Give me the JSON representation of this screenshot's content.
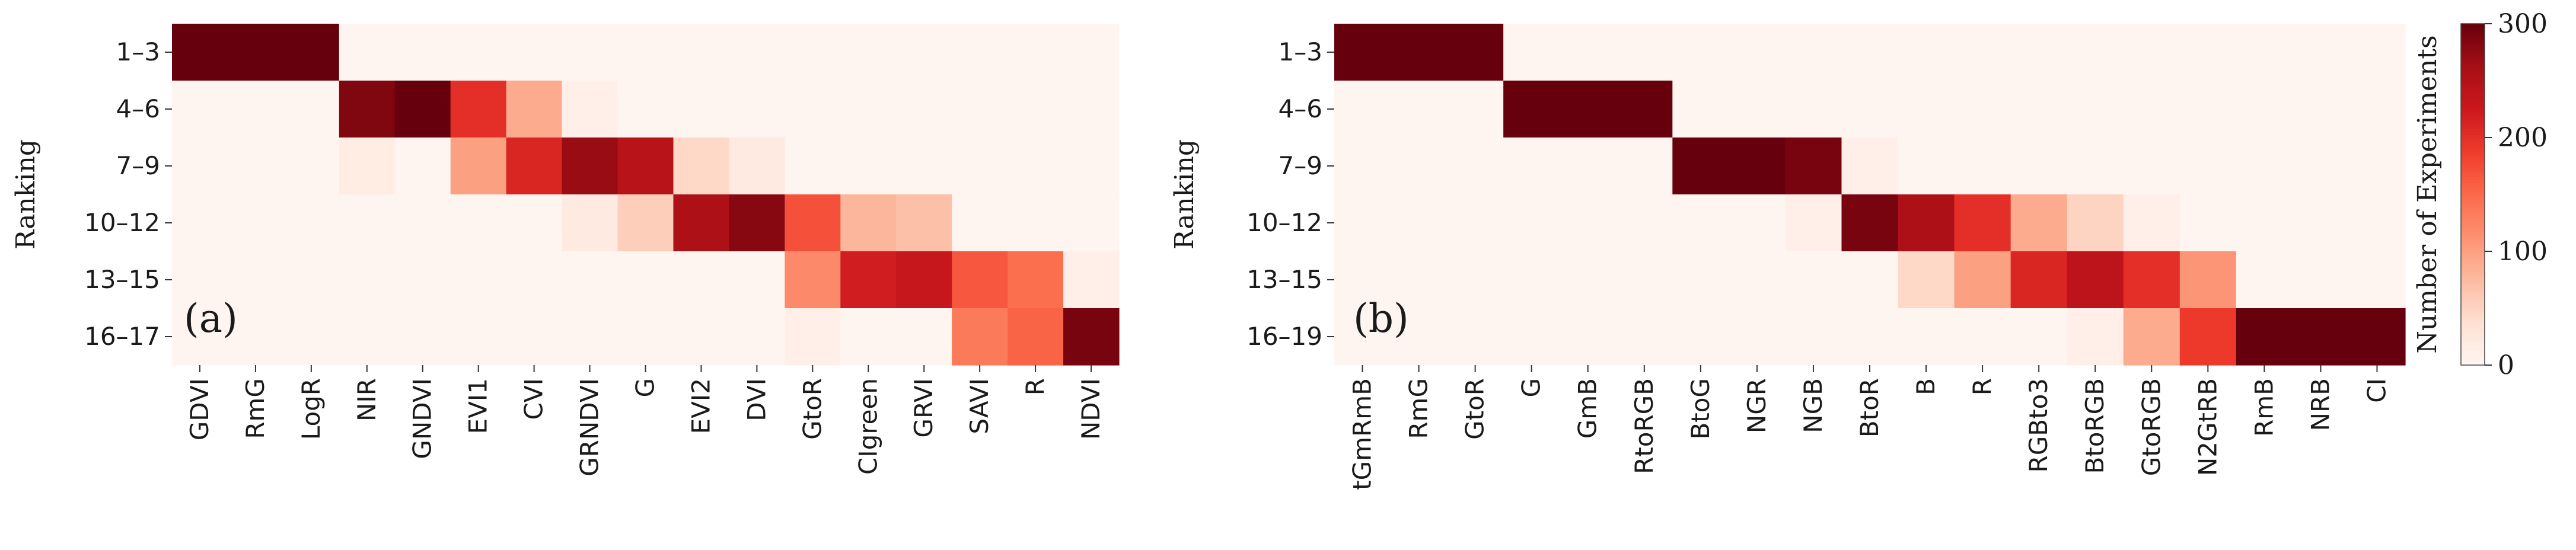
{
  "chart_data": [
    {
      "type": "heatmap",
      "panel_label": "(a)",
      "ylabel": "Ranking",
      "rows": [
        "1–3",
        "4–6",
        "7–9",
        "10–12",
        "13–15",
        "16–17"
      ],
      "columns": [
        "GDVI",
        "RmG",
        "LogR",
        "NIR",
        "GNDVI",
        "EVI1",
        "CVI",
        "GRNDVI",
        "G",
        "EVI2",
        "DVI",
        "GtoR",
        "CIgreen",
        "GRVI",
        "SAVI",
        "R",
        "NDVI"
      ],
      "values": [
        [
          300,
          300,
          300,
          0,
          0,
          0,
          0,
          0,
          0,
          0,
          0,
          0,
          0,
          0,
          0,
          0,
          0
        ],
        [
          0,
          0,
          0,
          285,
          300,
          200,
          90,
          10,
          0,
          0,
          0,
          0,
          0,
          0,
          0,
          0,
          0
        ],
        [
          0,
          0,
          0,
          15,
          0,
          100,
          210,
          270,
          245,
          45,
          20,
          0,
          0,
          0,
          0,
          0,
          0
        ],
        [
          0,
          0,
          0,
          0,
          0,
          0,
          0,
          20,
          55,
          255,
          280,
          170,
          80,
          70,
          0,
          0,
          0
        ],
        [
          0,
          0,
          0,
          0,
          0,
          0,
          0,
          0,
          0,
          0,
          0,
          120,
          220,
          230,
          165,
          145,
          10
        ],
        [
          0,
          0,
          0,
          0,
          0,
          0,
          0,
          0,
          0,
          0,
          0,
          10,
          0,
          0,
          135,
          155,
          290
        ]
      ]
    },
    {
      "type": "heatmap",
      "panel_label": "(b)",
      "ylabel": "Ranking",
      "rows": [
        "1–3",
        "4–6",
        "7–9",
        "10–12",
        "13–15",
        "16–19"
      ],
      "columns": [
        "tGmRmB",
        "RmG",
        "GtoR",
        "G",
        "GmB",
        "RtoRGB",
        "BtoG",
        "NGR",
        "NGB",
        "BtoR",
        "B",
        "R",
        "RGBto3",
        "BtoRGB",
        "GtoRGB",
        "N2GtRB",
        "RmB",
        "NRB",
        "CI"
      ],
      "values": [
        [
          300,
          300,
          300,
          0,
          0,
          0,
          0,
          0,
          0,
          0,
          0,
          0,
          0,
          0,
          0,
          0,
          0,
          0,
          0
        ],
        [
          0,
          0,
          0,
          300,
          300,
          300,
          0,
          0,
          0,
          0,
          0,
          0,
          0,
          0,
          0,
          0,
          0,
          0,
          0
        ],
        [
          0,
          0,
          0,
          0,
          0,
          0,
          300,
          300,
          290,
          10,
          0,
          0,
          0,
          0,
          0,
          0,
          0,
          0,
          0
        ],
        [
          0,
          0,
          0,
          0,
          0,
          0,
          0,
          0,
          10,
          290,
          255,
          200,
          90,
          50,
          10,
          0,
          0,
          0,
          0
        ],
        [
          0,
          0,
          0,
          0,
          0,
          0,
          0,
          0,
          0,
          0,
          45,
          100,
          210,
          240,
          200,
          110,
          0,
          0,
          0
        ],
        [
          0,
          0,
          0,
          0,
          0,
          0,
          0,
          0,
          0,
          0,
          0,
          0,
          0,
          10,
          90,
          190,
          300,
          300,
          300
        ]
      ]
    }
  ],
  "colorbar": {
    "label": "Number of Experiments",
    "min": 0,
    "max": 300,
    "ticks": [
      0,
      100,
      200,
      300
    ],
    "colors": [
      "#fff5f0",
      "#fee0d2",
      "#fcbba1",
      "#fc9272",
      "#fb6a4a",
      "#ef3b2c",
      "#cb181d",
      "#a50f15",
      "#67000d"
    ]
  }
}
